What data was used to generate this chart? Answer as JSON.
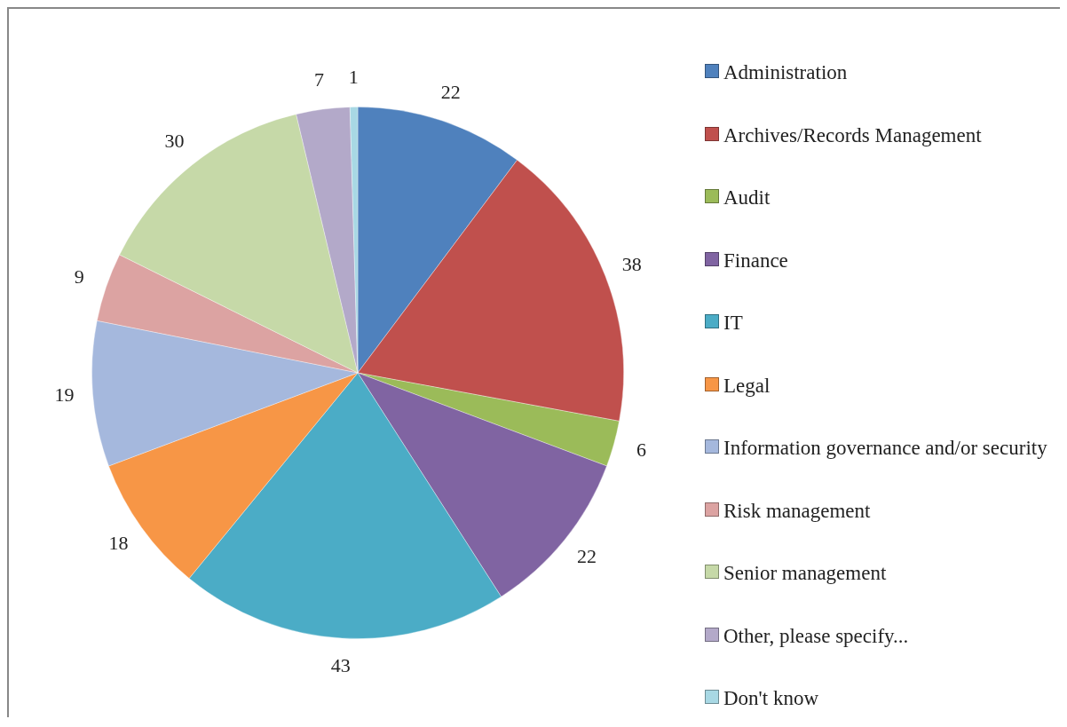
{
  "chart_data": {
    "type": "pie",
    "categories": [
      "Administration",
      "Archives/Records Management",
      "Audit",
      "Finance",
      "IT",
      "Legal",
      "Information governance and/or security",
      "Risk management",
      "Senior management",
      "Other, please specify...",
      "Don't know"
    ],
    "values": [
      22,
      38,
      6,
      22,
      43,
      18,
      19,
      9,
      30,
      7,
      1
    ],
    "colors": [
      "#4f81bd",
      "#c0504d",
      "#9bbb59",
      "#8064a2",
      "#4bacc6",
      "#f79646",
      "#a5b8dd",
      "#dca3a2",
      "#c6d9a8",
      "#b3a9c9",
      "#a8d8e4"
    ],
    "data_labels": true,
    "legend": "right"
  }
}
